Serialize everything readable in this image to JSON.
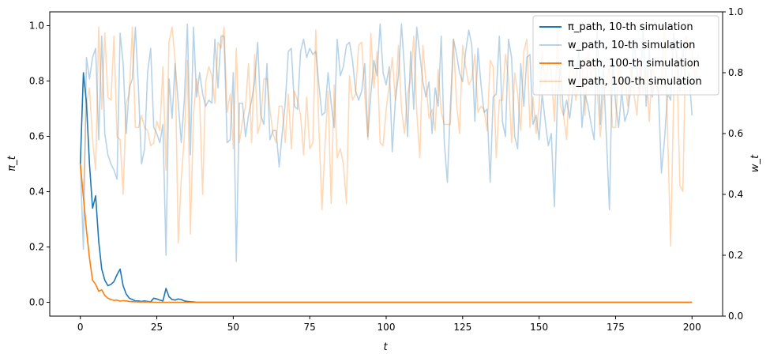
{
  "chart_data": {
    "type": "line",
    "xlabel": "t",
    "ylabel_left": "π_t",
    "ylabel_right": "w_t",
    "xlim": [
      -10,
      210
    ],
    "ylim_left": [
      -0.05,
      1.05
    ],
    "ylim_right": [
      0.0,
      1.0
    ],
    "xticks": [
      0,
      25,
      50,
      75,
      100,
      125,
      150,
      175,
      200
    ],
    "yticks_left": [
      0.0,
      0.2,
      0.4,
      0.6,
      0.8,
      1.0
    ],
    "yticks_right": [
      0.0,
      0.2,
      0.4,
      0.6,
      0.8,
      1.0
    ],
    "grid": false,
    "legend_position": "top-right",
    "series": [
      {
        "name": "π_path, 10-th simulation",
        "axis": "left",
        "color": "#1f77b4",
        "opacity": 1.0,
        "x": [
          0,
          1,
          2,
          3,
          4,
          5,
          6,
          7,
          8,
          9,
          10,
          11,
          12,
          13,
          14,
          15,
          16,
          17,
          18,
          19,
          20,
          21,
          22,
          23,
          24,
          25,
          26,
          27,
          28,
          29,
          30,
          31,
          32,
          33,
          34,
          35,
          36,
          37,
          38,
          40,
          200
        ],
        "y": [
          0.5,
          0.83,
          0.72,
          0.5,
          0.34,
          0.385,
          0.22,
          0.12,
          0.08,
          0.06,
          0.065,
          0.075,
          0.1,
          0.12,
          0.06,
          0.03,
          0.015,
          0.01,
          0.005,
          0.005,
          0.003,
          0.005,
          0.003,
          0.002,
          0.015,
          0.012,
          0.008,
          0.005,
          0.05,
          0.02,
          0.01,
          0.008,
          0.012,
          0.01,
          0.005,
          0.003,
          0.002,
          0.001,
          0.0,
          0.0,
          0.0
        ]
      },
      {
        "name": "w_path, 10-th simulation",
        "axis": "right",
        "color": "#1f77b4",
        "opacity": 0.32,
        "x": "0..200",
        "y": [
          0.5,
          0.22,
          0.85,
          0.78,
          0.85,
          0.88,
          0.58,
          0.92,
          0.6,
          0.53,
          0.5,
          0.48,
          0.45,
          0.93,
          0.83,
          0.6,
          0.75,
          0.78,
          0.95,
          0.75,
          0.5,
          0.55,
          0.8,
          0.88,
          0.62,
          0.6,
          0.57,
          0.63,
          0.2,
          0.78,
          0.65,
          0.83,
          0.7,
          0.57,
          0.71,
          0.96,
          0.53,
          0.95,
          0.72,
          0.8,
          0.73,
          0.69,
          0.71,
          0.7,
          0.91,
          0.75,
          0.92,
          0.92,
          0.57,
          0.58,
          0.8,
          0.18,
          0.7,
          0.7,
          0.59,
          0.66,
          0.71,
          0.77,
          0.9,
          0.66,
          0.63,
          0.83,
          0.58,
          0.61,
          0.61,
          0.49,
          0.6,
          0.7,
          0.87,
          0.88,
          0.69,
          0.68,
          0.87,
          0.91,
          0.85,
          0.88,
          0.86,
          0.87,
          0.76,
          0.66,
          0.67,
          0.8,
          0.7,
          0.62,
          0.91,
          0.79,
          0.82,
          0.89,
          0.9,
          0.84,
          0.74,
          0.71,
          0.74,
          0.83,
          0.59,
          0.73,
          0.84,
          0.79,
          0.96,
          0.8,
          0.76,
          0.82,
          0.54,
          0.71,
          0.79,
          0.96,
          0.81,
          0.59,
          0.87,
          0.68,
          0.95,
          0.86,
          0.77,
          0.72,
          0.77,
          0.6,
          0.75,
          0.69,
          0.92,
          0.57,
          0.44,
          0.69,
          0.91,
          0.86,
          0.8,
          0.77,
          0.87,
          0.94,
          0.89,
          0.64,
          0.88,
          0.76,
          0.67,
          0.68,
          0.44,
          0.72,
          0.73,
          0.92,
          0.64,
          0.59,
          0.91,
          0.85,
          0.59,
          0.55,
          0.83,
          0.69,
          0.85,
          0.86,
          0.63,
          0.66,
          0.58,
          0.73,
          0.64,
          0.56,
          0.6,
          0.36,
          0.72,
          0.82,
          0.66,
          0.71,
          0.65,
          0.74,
          0.77,
          0.88,
          0.62,
          0.73,
          0.69,
          0.63,
          0.58,
          0.95,
          0.63,
          0.81,
          0.59,
          0.35,
          0.85,
          0.7,
          0.62,
          0.74,
          0.64,
          0.67,
          0.75,
          0.91,
          0.81,
          0.73,
          0.95,
          0.69,
          0.88,
          0.72,
          0.79,
          0.74,
          0.47,
          0.58,
          0.73,
          0.71,
          0.93,
          0.85,
          0.74,
          0.88,
          0.76,
          0.8,
          0.66
        ]
      },
      {
        "name": "π_path, 100-th simulation",
        "axis": "left",
        "color": "#ff7f0e",
        "opacity": 1.0,
        "x": [
          0,
          1,
          2,
          3,
          4,
          5,
          6,
          7,
          8,
          9,
          10,
          11,
          12,
          13,
          14,
          15,
          16,
          17,
          18,
          19,
          20,
          22,
          25,
          30,
          35,
          40,
          200
        ],
        "y": [
          0.5,
          0.38,
          0.26,
          0.16,
          0.08,
          0.065,
          0.04,
          0.045,
          0.025,
          0.015,
          0.01,
          0.007,
          0.008,
          0.004,
          0.006,
          0.005,
          0.003,
          0.002,
          0.002,
          0.001,
          0.001,
          0.001,
          0.0,
          0.0,
          0.0,
          0.0,
          0.0
        ]
      },
      {
        "name": "w_path, 100-th simulation",
        "axis": "right",
        "color": "#ff7f0e",
        "opacity": 0.3,
        "x": "0..200",
        "y": [
          0.5,
          0.4,
          0.7,
          0.75,
          0.58,
          0.48,
          0.95,
          0.68,
          0.93,
          0.72,
          0.71,
          0.92,
          0.59,
          0.58,
          0.4,
          0.7,
          0.73,
          0.95,
          0.62,
          0.62,
          0.66,
          0.62,
          0.61,
          0.56,
          0.57,
          0.64,
          0.61,
          0.82,
          0.48,
          0.9,
          0.95,
          0.84,
          0.24,
          0.45,
          0.59,
          0.84,
          0.27,
          0.66,
          0.78,
          0.71,
          0.4,
          0.77,
          0.82,
          0.79,
          0.7,
          0.9,
          0.88,
          0.95,
          0.67,
          0.73,
          0.55,
          0.88,
          0.57,
          0.64,
          0.69,
          0.83,
          0.57,
          0.86,
          0.6,
          0.64,
          0.78,
          0.78,
          0.68,
          0.6,
          0.57,
          0.69,
          0.69,
          0.57,
          0.73,
          0.55,
          0.74,
          0.71,
          0.66,
          0.53,
          0.72,
          0.55,
          0.57,
          0.94,
          0.62,
          0.35,
          0.56,
          0.74,
          0.37,
          0.76,
          0.52,
          0.55,
          0.5,
          0.37,
          0.79,
          0.71,
          0.73,
          0.89,
          0.9,
          0.73,
          0.58,
          0.93,
          0.75,
          0.87,
          0.57,
          0.56,
          0.68,
          0.76,
          0.85,
          0.71,
          0.89,
          0.68,
          0.6,
          0.73,
          0.78,
          0.92,
          0.67,
          0.52,
          0.89,
          0.77,
          0.65,
          0.68,
          0.61,
          0.81,
          0.67,
          0.63,
          0.63,
          0.63,
          0.91,
          0.7,
          0.6,
          0.89,
          0.82,
          0.76,
          0.78,
          0.86,
          0.67,
          0.69,
          0.68,
          0.61,
          0.84,
          0.82,
          0.52,
          0.71,
          0.71,
          0.86,
          0.78,
          0.57,
          0.8,
          0.73,
          0.61,
          0.87,
          0.91,
          0.62,
          0.72,
          0.6,
          0.69,
          0.87,
          0.76,
          0.84,
          0.8,
          0.64,
          0.93,
          0.69,
          0.66,
          0.58,
          0.8,
          0.83,
          0.71,
          0.76,
          0.84,
          0.66,
          0.87,
          0.79,
          0.83,
          0.75,
          0.59,
          0.72,
          0.77,
          0.82,
          0.62,
          0.62,
          0.84,
          0.74,
          0.78,
          0.69,
          0.83,
          0.73,
          0.66,
          0.84,
          0.73,
          0.82,
          0.64,
          0.83,
          0.77,
          0.73,
          0.76,
          0.94,
          0.61,
          0.23,
          0.72,
          0.87,
          0.43,
          0.41,
          0.92,
          0.88,
          0.87,
          0.78,
          0.86
        ]
      }
    ]
  }
}
